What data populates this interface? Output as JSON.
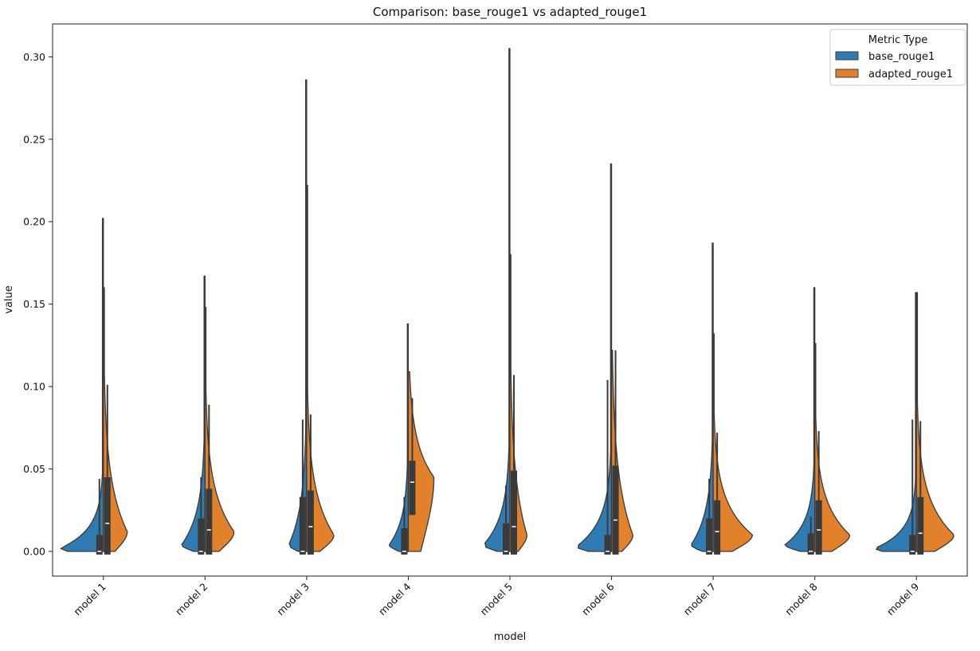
{
  "chart_data": {
    "type": "violin",
    "title": "Comparison: base_rouge1 vs adapted_rouge1",
    "xlabel": "model",
    "ylabel": "value",
    "ylim": [
      -0.015,
      0.32
    ],
    "yticks": [
      0.0,
      0.05,
      0.1,
      0.15,
      0.2,
      0.25,
      0.3
    ],
    "ytick_labels": [
      "0.00",
      "0.05",
      "0.10",
      "0.15",
      "0.20",
      "0.25",
      "0.30"
    ],
    "categories": [
      "model 1",
      "model 2",
      "model 3",
      "model 4",
      "model 5",
      "model 6",
      "model 7",
      "model 8",
      "model 9"
    ],
    "grid": false,
    "legend": {
      "title": "Metric Type",
      "placement": "top-right"
    },
    "series": [
      {
        "name": "base_rouge1",
        "color": "#2f7bb2",
        "split_side": "left",
        "stats": [
          {
            "max": 0.202,
            "mode": 0.002,
            "peak_rel": 1.0,
            "tail": 0.012,
            "q1": 0,
            "median": 0,
            "q3": 0.01,
            "whisker": 0.044
          },
          {
            "max": 0.167,
            "mode": 0.004,
            "peak_rel": 0.55,
            "tail": 0.02,
            "q1": 0,
            "median": 0,
            "q3": 0.02,
            "whisker": 0.045
          },
          {
            "max": 0.286,
            "mode": 0.004,
            "peak_rel": 0.42,
            "tail": 0.024,
            "q1": 0,
            "median": 0,
            "q3": 0.033,
            "whisker": 0.08
          },
          {
            "max": 0.138,
            "mode": 0.004,
            "peak_rel": 0.45,
            "tail": 0.016,
            "q1": 0,
            "median": 0,
            "q3": 0.014,
            "whisker": 0.033
          },
          {
            "max": 0.305,
            "mode": 0.004,
            "peak_rel": 0.62,
            "tail": 0.018,
            "q1": 0,
            "median": 0,
            "q3": 0.017,
            "whisker": 0.04
          },
          {
            "max": 0.235,
            "mode": 0.003,
            "peak_rel": 0.82,
            "tail": 0.016,
            "q1": 0,
            "median": 0,
            "q3": 0.01,
            "whisker": 0.104
          },
          {
            "max": 0.187,
            "mode": 0.004,
            "peak_rel": 0.52,
            "tail": 0.02,
            "q1": 0,
            "median": 0,
            "q3": 0.02,
            "whisker": 0.044
          },
          {
            "max": 0.16,
            "mode": 0.004,
            "peak_rel": 0.7,
            "tail": 0.014,
            "q1": 0,
            "median": 0,
            "q3": 0.011,
            "whisker": 0.021
          },
          {
            "max": 0.157,
            "mode": 0.002,
            "peak_rel": 0.96,
            "tail": 0.011,
            "q1": 0,
            "median": 0,
            "q3": 0.01,
            "whisker": 0.08
          }
        ]
      },
      {
        "name": "adapted_rouge1",
        "color": "#e1812c",
        "split_side": "right",
        "stats": [
          {
            "max": 0.16,
            "mode": 0.012,
            "peak_rel": 0.56,
            "tail": 0.03,
            "q1": 0,
            "median": 0.017,
            "q3": 0.045,
            "whisker": 0.101
          },
          {
            "max": 0.148,
            "mode": 0.012,
            "peak_rel": 0.68,
            "tail": 0.025,
            "q1": 0,
            "median": 0.013,
            "q3": 0.038,
            "whisker": 0.089
          },
          {
            "max": 0.222,
            "mode": 0.01,
            "peak_rel": 0.64,
            "tail": 0.026,
            "q1": 0,
            "median": 0.015,
            "q3": 0.037,
            "whisker": 0.083
          },
          {
            "max": 0.109,
            "mode": 0.045,
            "peak_rel": 0.6,
            "tail": 0.022,
            "q1": 0.024,
            "median": 0.042,
            "q3": 0.055,
            "whisker": 0.093
          },
          {
            "max": 0.18,
            "mode": 0.01,
            "peak_rel": 0.4,
            "tail": 0.035,
            "q1": 0,
            "median": 0.015,
            "q3": 0.049,
            "whisker": 0.107
          },
          {
            "max": 0.122,
            "mode": 0.01,
            "peak_rel": 0.5,
            "tail": 0.035,
            "q1": 0,
            "median": 0.019,
            "q3": 0.052,
            "whisker": 0.122
          },
          {
            "max": 0.132,
            "mode": 0.01,
            "peak_rel": 0.92,
            "tail": 0.02,
            "q1": 0,
            "median": 0.012,
            "q3": 0.031,
            "whisker": 0.072
          },
          {
            "max": 0.126,
            "mode": 0.01,
            "peak_rel": 0.82,
            "tail": 0.02,
            "q1": 0,
            "median": 0.013,
            "q3": 0.031,
            "whisker": 0.073
          },
          {
            "max": 0.157,
            "mode": 0.01,
            "peak_rel": 0.88,
            "tail": 0.022,
            "q1": 0,
            "median": 0.011,
            "q3": 0.033,
            "whisker": 0.079
          }
        ]
      }
    ]
  }
}
